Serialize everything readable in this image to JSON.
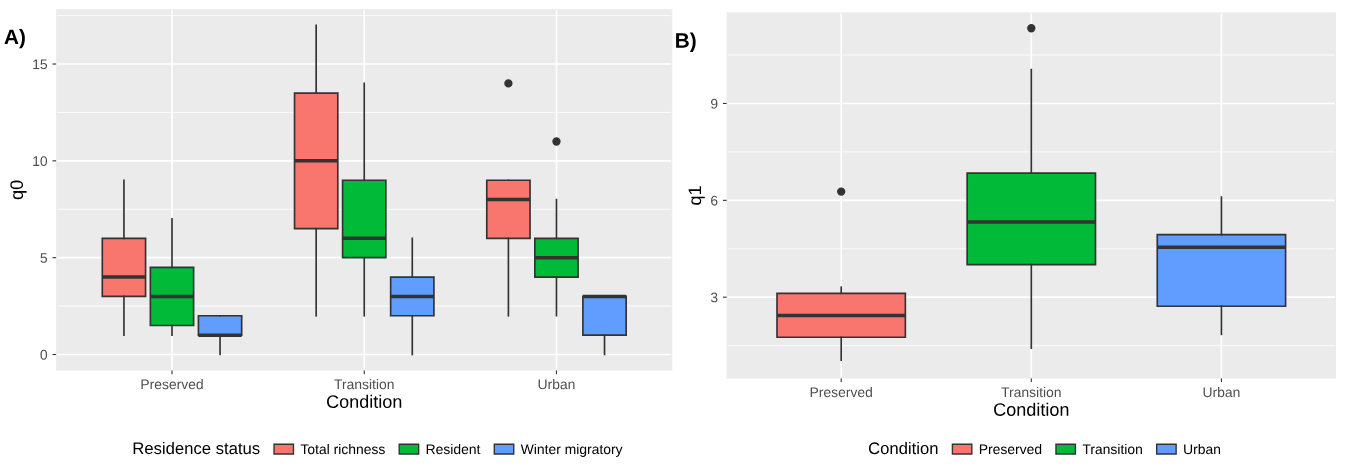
{
  "chart_data": [
    {
      "type": "box",
      "xlabel": "Condition",
      "ylabel": "q0",
      "categories": [
        "Preserved",
        "Transition",
        "Urban"
      ],
      "ylim": [
        -0.8,
        17.8
      ],
      "yticks": [
        0,
        5,
        10,
        15
      ],
      "grid": true,
      "legend": "bottom",
      "legend_title": "Residence status",
      "annotations": [
        "A)"
      ],
      "series": [
        {
          "name": "Total richness",
          "color": "#f8766d",
          "boxes": [
            {
              "low": 1,
              "q1": 3,
              "median": 4,
              "q3": 6,
              "high": 9
            },
            {
              "low": 2,
              "q1": 6.5,
              "median": 10,
              "q3": 13.5,
              "high": 17
            },
            {
              "low": 2,
              "q1": 6,
              "median": 8,
              "q3": 9,
              "high": 9,
              "outliers": [
                14
              ]
            }
          ]
        },
        {
          "name": "Resident",
          "color": "#00ba38",
          "boxes": [
            {
              "low": 1,
              "q1": 1.5,
              "median": 3,
              "q3": 4.5,
              "high": 7
            },
            {
              "low": 2,
              "q1": 5,
              "median": 6,
              "q3": 9,
              "high": 14
            },
            {
              "low": 2,
              "q1": 4,
              "median": 5,
              "q3": 6,
              "high": 8,
              "outliers": [
                11
              ]
            }
          ]
        },
        {
          "name": "Winter migratory",
          "color": "#619cff",
          "boxes": [
            {
              "low": 0,
              "q1": 1,
              "median": 1,
              "q3": 2,
              "high": 2
            },
            {
              "low": 0,
              "q1": 2,
              "median": 3,
              "q3": 4,
              "high": 6
            },
            {
              "low": 0,
              "q1": 1,
              "median": 3,
              "q3": 3,
              "high": 3
            }
          ]
        }
      ]
    },
    {
      "type": "box",
      "xlabel": "Condition",
      "ylabel": "q1",
      "categories": [
        "Preserved",
        "Transition",
        "Urban"
      ],
      "ylim": [
        0.5,
        11.8
      ],
      "yticks": [
        3,
        6,
        9
      ],
      "grid": true,
      "legend": "bottom",
      "legend_title": "Condition",
      "annotations": [
        "B)"
      ],
      "series": [
        {
          "name": "Preserved",
          "color": "#f8766d",
          "boxes": [
            {
              "low": 1.05,
              "q1": 1.76,
              "median": 2.43,
              "q3": 3.12,
              "high": 3.31,
              "outliers": [
                6.27
              ]
            },
            null,
            null
          ]
        },
        {
          "name": "Transition",
          "color": "#00ba38",
          "boxes": [
            null,
            {
              "low": 1.42,
              "q1": 4.01,
              "median": 5.33,
              "q3": 6.84,
              "high": 10.05,
              "outliers": [
                11.33
              ]
            },
            null
          ]
        },
        {
          "name": "Urban",
          "color": "#619cff",
          "boxes": [
            null,
            null,
            {
              "low": 1.85,
              "q1": 2.72,
              "median": 4.55,
              "q3": 4.94,
              "high": 6.1
            }
          ]
        }
      ]
    }
  ]
}
